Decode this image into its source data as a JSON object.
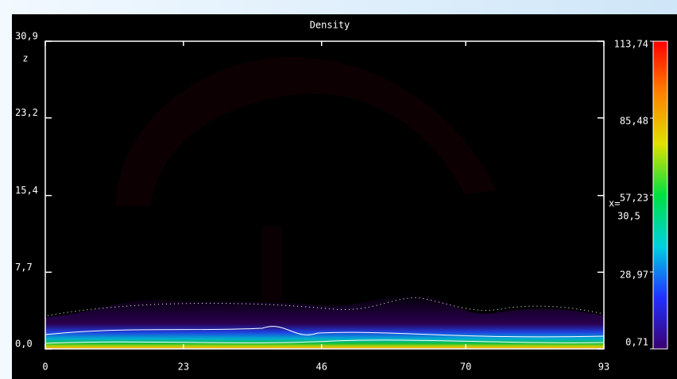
{
  "chart_data": {
    "type": "contour",
    "title": "Density",
    "ylabel": "z",
    "xlim": [
      0,
      93
    ],
    "xticks": [
      0,
      23,
      46,
      70,
      93
    ],
    "ylim": [
      0,
      30.9
    ],
    "yticks": [
      {
        "value": 0,
        "label": "0,0"
      },
      {
        "value": 7.7,
        "label": "7,7"
      },
      {
        "value": 15.4,
        "label": "15,4"
      },
      {
        "value": 23.2,
        "label": "23,2"
      },
      {
        "value": 30.9,
        "label": "30,9"
      }
    ],
    "colorbar": {
      "lim": [
        0.71,
        113.74
      ],
      "ticks": [
        {
          "value": 0.71,
          "label": "0,71"
        },
        {
          "value": 28.97,
          "label": "28,97"
        },
        {
          "value": 57.23,
          "label": "57,23"
        },
        {
          "value": 85.48,
          "label": "85,48"
        },
        {
          "value": 113.74,
          "label": "113,74"
        }
      ],
      "colors": [
        "#3a0070",
        "#2030ff",
        "#00d0e0",
        "#00e040",
        "#e0e000",
        "#ff8000",
        "#ff0000"
      ]
    },
    "slice_label": "x=",
    "slice_value": "30,5"
  }
}
